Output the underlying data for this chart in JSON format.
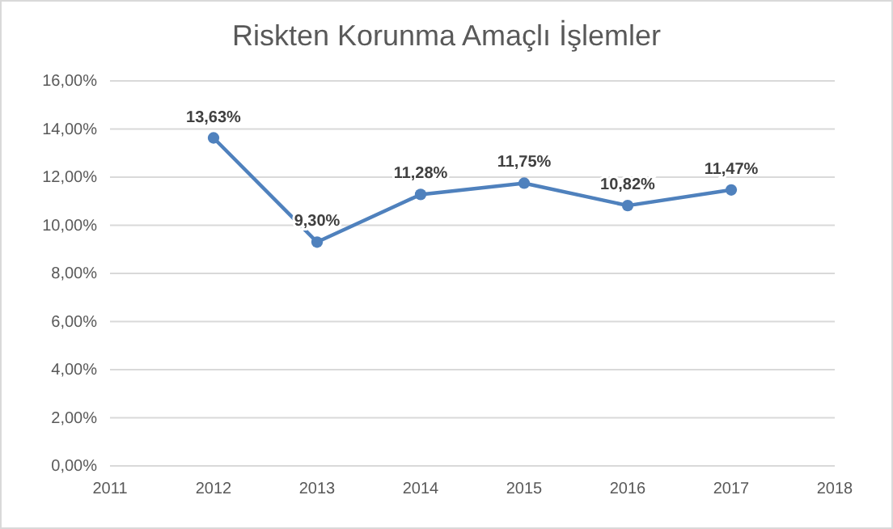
{
  "chart_data": {
    "type": "line",
    "title": "Riskten Korunma Amaçlı İşlemler",
    "x": [
      2012,
      2013,
      2014,
      2015,
      2016,
      2017
    ],
    "series": [
      {
        "color": "#4f81bd",
        "values": [
          13.63,
          9.3,
          11.28,
          11.75,
          10.82,
          11.47
        ],
        "value_labels": [
          "13,63%",
          "9,30%",
          "11,28%",
          "11,75%",
          "10,82%",
          "11,47%"
        ]
      }
    ],
    "xlim": [
      2011,
      2018
    ],
    "xticks": [
      2011,
      2012,
      2013,
      2014,
      2015,
      2016,
      2017,
      2018
    ],
    "ylim": [
      0,
      16
    ],
    "yticks": [
      {
        "value": 0,
        "label": "0,00%"
      },
      {
        "value": 2,
        "label": "2,00%"
      },
      {
        "value": 4,
        "label": "4,00%"
      },
      {
        "value": 6,
        "label": "6,00%"
      },
      {
        "value": 8,
        "label": "8,00%"
      },
      {
        "value": 10,
        "label": "10,00%"
      },
      {
        "value": 12,
        "label": "12,00%"
      },
      {
        "value": 14,
        "label": "14,00%"
      },
      {
        "value": 16,
        "label": "16,00%"
      }
    ],
    "grid": "y",
    "marker": "circle",
    "line_style": "solid"
  }
}
